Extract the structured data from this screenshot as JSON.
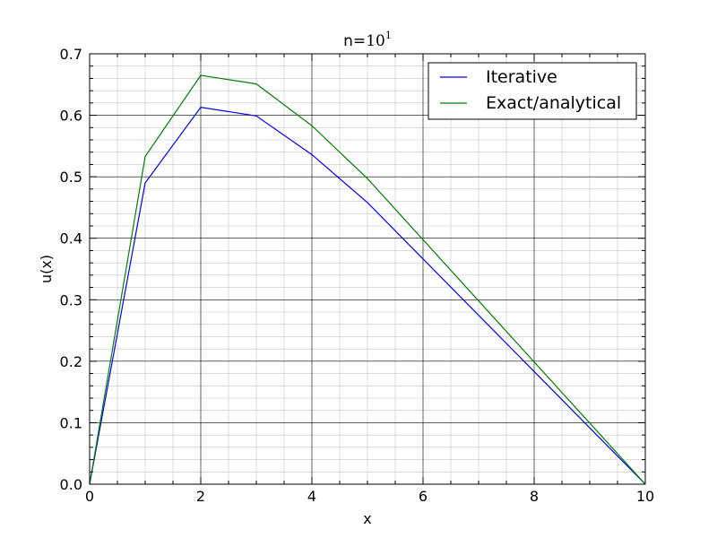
{
  "chart_data": {
    "type": "line",
    "title": {
      "prefix": "n=",
      "base": "10",
      "exponent": "1"
    },
    "xlabel": "x",
    "ylabel": "u(x)",
    "xlim": [
      0,
      10
    ],
    "ylim": [
      0,
      0.7
    ],
    "x_ticks": [
      0,
      2,
      4,
      6,
      8,
      10
    ],
    "x_tick_labels": [
      "0",
      "2",
      "4",
      "6",
      "8",
      "10"
    ],
    "y_ticks": [
      0,
      0.1,
      0.2,
      0.3,
      0.4,
      0.5,
      0.6,
      0.7
    ],
    "y_tick_labels": [
      "0.0",
      "0.1",
      "0.2",
      "0.3",
      "0.4",
      "0.5",
      "0.6",
      "0.7"
    ],
    "x_minor_step": 0.5,
    "y_minor_step": 0.02,
    "grid": "major and minor",
    "legend": "top-right",
    "series": [
      {
        "name": "Iterative",
        "color": "#0000ff",
        "x": [
          0,
          1,
          2,
          3,
          4,
          5,
          10
        ],
        "y": [
          0.0,
          0.49,
          0.613,
          0.599,
          0.536,
          0.458,
          0.0
        ]
      },
      {
        "name": "Exact/analytical",
        "color": "#008000",
        "x": [
          0,
          1,
          2,
          3,
          4,
          5,
          10
        ],
        "y": [
          0.0,
          0.533,
          0.665,
          0.651,
          0.583,
          0.497,
          0.0
        ]
      }
    ]
  }
}
